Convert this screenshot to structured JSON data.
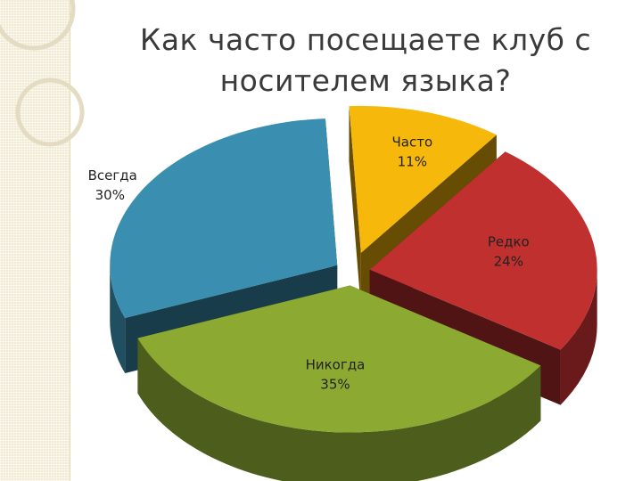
{
  "title": "Как часто посещаете клуб с носителем языка?",
  "chart_data": {
    "type": "pie",
    "title": "Как часто посещаете клуб с носителем языка?",
    "categories": [
      "Часто",
      "Редко",
      "Никогда",
      "Всегда"
    ],
    "values": [
      11,
      24,
      35,
      30
    ],
    "labels": [
      "11%",
      "24%",
      "35%",
      "30%"
    ],
    "colors": [
      "#f6b80a",
      "#c0302f",
      "#8caa32",
      "#3a8fb0"
    ],
    "style": "3d-exploded"
  }
}
